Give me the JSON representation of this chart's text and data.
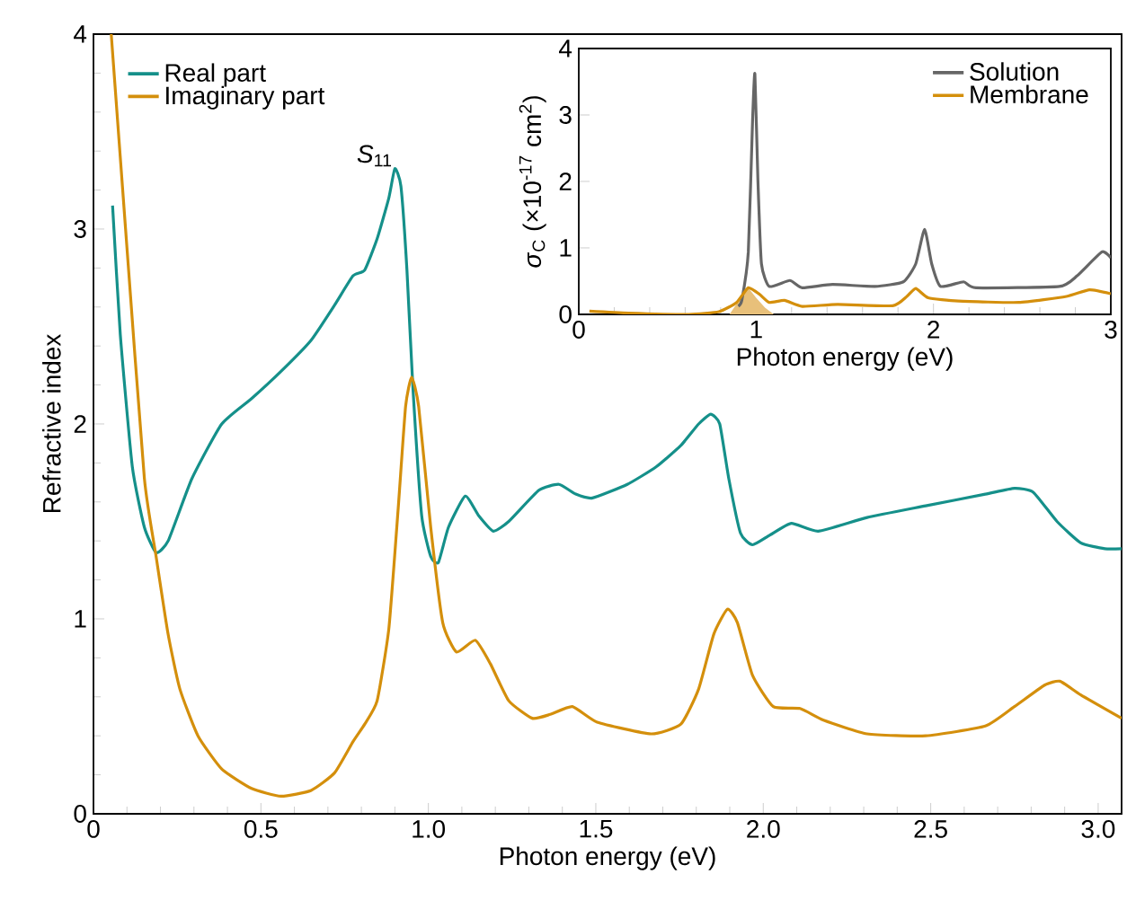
{
  "chart_data": [
    {
      "type": "line",
      "xlabel": "Photon energy (eV)",
      "ylabel": "Refractive index",
      "xlim": [
        0,
        3.07
      ],
      "ylim": [
        0,
        4
      ],
      "xticks": [
        0,
        0.5,
        {
          "value": 1,
          "label": "1.0"
        },
        1.5,
        {
          "value": 2,
          "label": "2.0"
        },
        2.5,
        {
          "value": 3,
          "label": "3.0"
        }
      ],
      "yticks": [
        0,
        1,
        2,
        3,
        4
      ],
      "legend": "top left",
      "annotations": [
        {
          "text": "*S*$_{11}$",
          "x": 0.9,
          "y": 3.31
        }
      ],
      "series": [
        {
          "name": "Real part",
          "color": "#15908a",
          "x": [
            0.057,
            0.08,
            0.116,
            0.152,
            0.187,
            0.223,
            0.294,
            0.383,
            0.472,
            0.56,
            0.65,
            0.72,
            0.775,
            0.81,
            0.847,
            0.882,
            0.9,
            0.918,
            0.936,
            0.954,
            0.98,
            1.007,
            1.03,
            1.06,
            1.11,
            1.15,
            1.194,
            1.24,
            1.33,
            1.39,
            1.44,
            1.49,
            1.594,
            1.68,
            1.754,
            1.807,
            1.843,
            1.87,
            1.897,
            1.932,
            1.968,
            2.02,
            2.084,
            2.164,
            2.31,
            2.485,
            2.663,
            2.75,
            2.806,
            2.877,
            2.948,
            3.02,
            3.07
          ],
          "values": [
            3.12,
            2.46,
            1.78,
            1.47,
            1.34,
            1.4,
            1.72,
            2.0,
            2.13,
            2.27,
            2.43,
            2.61,
            2.76,
            2.79,
            2.95,
            3.16,
            3.31,
            3.22,
            2.79,
            2.18,
            1.53,
            1.32,
            1.29,
            1.47,
            1.63,
            1.53,
            1.45,
            1.5,
            1.66,
            1.69,
            1.64,
            1.62,
            1.69,
            1.78,
            1.89,
            2.0,
            2.05,
            2.0,
            1.72,
            1.44,
            1.38,
            1.43,
            1.49,
            1.45,
            1.52,
            1.58,
            1.64,
            1.67,
            1.65,
            1.5,
            1.39,
            1.36,
            1.36
          ]
        },
        {
          "name": "Imaginary part",
          "color": "#d48f0c",
          "x": [
            0.053,
            0.098,
            0.152,
            0.187,
            0.223,
            0.258,
            0.312,
            0.383,
            0.472,
            0.56,
            0.65,
            0.72,
            0.775,
            0.81,
            0.847,
            0.882,
            0.91,
            0.932,
            0.95,
            0.971,
            1.007,
            1.043,
            1.084,
            1.14,
            1.185,
            1.24,
            1.31,
            1.364,
            1.43,
            1.504,
            1.665,
            1.754,
            1.807,
            1.852,
            1.893,
            1.923,
            1.968,
            2.03,
            2.11,
            2.18,
            2.31,
            2.485,
            2.663,
            2.75,
            2.84,
            2.886,
            2.948,
            3.07
          ],
          "values": [
            4.0,
            2.95,
            1.72,
            1.32,
            0.92,
            0.64,
            0.4,
            0.23,
            0.13,
            0.09,
            0.12,
            0.21,
            0.37,
            0.46,
            0.58,
            0.95,
            1.57,
            2.09,
            2.24,
            2.09,
            1.47,
            0.98,
            0.83,
            0.89,
            0.77,
            0.58,
            0.49,
            0.51,
            0.55,
            0.47,
            0.41,
            0.46,
            0.64,
            0.92,
            1.05,
            0.98,
            0.71,
            0.55,
            0.54,
            0.48,
            0.41,
            0.4,
            0.45,
            0.55,
            0.66,
            0.68,
            0.61,
            0.49
          ]
        }
      ]
    },
    {
      "type": "line",
      "xlabel": "Photon energy (eV)",
      "ylabel": "*σ*$_{C}$ (×10$^{-17}$ cm$^{2}$)",
      "xlim": [
        0,
        3
      ],
      "ylim": [
        0,
        4
      ],
      "xticks": [
        0,
        1,
        2,
        3
      ],
      "yticks": [
        0,
        1,
        2,
        3,
        4
      ],
      "legend": "top right",
      "series": [
        {
          "type": "area",
          "color": "#e8c07a",
          "x": [
            0.85,
            0.9,
            0.956,
            1.0,
            1.05,
            1.1
          ],
          "values": [
            0.0,
            0.2,
            0.4,
            0.25,
            0.1,
            0.0
          ]
        },
        {
          "name": "Solution",
          "color": "#666666",
          "x": [
            0.9,
            0.92,
            0.956,
            0.98,
            0.993,
            1.01,
            1.03,
            1.074,
            1.19,
            1.26,
            1.43,
            1.67,
            1.83,
            1.9,
            1.95,
            1.99,
            2.04,
            2.17,
            2.24,
            2.71,
            2.81,
            2.95,
            3.0
          ],
          "values": [
            0.12,
            0.22,
            0.94,
            2.92,
            3.62,
            2.02,
            0.76,
            0.42,
            0.51,
            0.4,
            0.45,
            0.42,
            0.49,
            0.76,
            1.28,
            0.76,
            0.42,
            0.49,
            0.4,
            0.42,
            0.58,
            0.94,
            0.85
          ]
        },
        {
          "name": "Membrane",
          "color": "#d48f0c",
          "x": [
            0.06,
            0.28,
            0.62,
            0.79,
            0.89,
            0.956,
            1.02,
            1.074,
            1.16,
            1.26,
            1.46,
            1.77,
            1.85,
            1.9,
            1.97,
            2.14,
            2.48,
            2.75,
            2.88,
            3.0
          ],
          "values": [
            0.05,
            0.02,
            0.0,
            0.04,
            0.18,
            0.4,
            0.3,
            0.18,
            0.21,
            0.12,
            0.15,
            0.13,
            0.27,
            0.39,
            0.25,
            0.2,
            0.18,
            0.27,
            0.37,
            0.31
          ]
        }
      ]
    }
  ]
}
